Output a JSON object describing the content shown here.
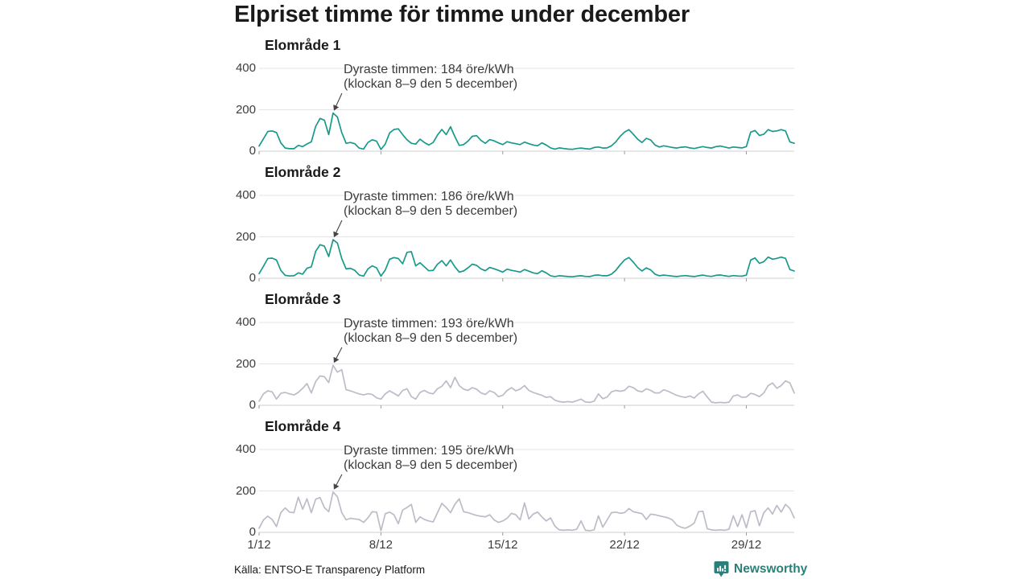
{
  "title": "Elpriset timme för timme under december",
  "source": "Källa: ENTSO-E Transparency Platform",
  "brand": {
    "name": "Newsworthy",
    "color": "#2a8079",
    "icon": "newsworthy-speech-bubble-chart-icon"
  },
  "colors": {
    "teal_line": "#189a8b",
    "gray_line": "#bcbcc8",
    "grid": "#e4e4e4",
    "baseline": "#cfcfcf",
    "tick": "#9a9a9a",
    "arrow": "#444444"
  },
  "axis": {
    "y_ticks": [
      "400",
      "200",
      "0"
    ],
    "x_ticks": [
      "1/12",
      "8/12",
      "15/12",
      "22/12",
      "29/12"
    ],
    "ylim": [
      0,
      400
    ],
    "grid": "horizontal-only"
  },
  "chart_data": [
    {
      "type": "line",
      "title": "Elområde 1",
      "ylabel": "öre/kWh",
      "color": "#189a8b",
      "ylim": [
        0,
        400
      ],
      "annotation_line1": "Dyraste timmen: 184 öre/kWh",
      "annotation_line2": "(klockan 8–9 den 5 december)",
      "peak_value": 184,
      "peak_day": 5,
      "sample_interval_hours": 6,
      "x_start": "1/12",
      "x_end": "31/12",
      "values": [
        25,
        60,
        95,
        98,
        90,
        40,
        15,
        12,
        12,
        28,
        22,
        35,
        45,
        120,
        158,
        150,
        80,
        184,
        165,
        90,
        38,
        42,
        36,
        15,
        10,
        42,
        55,
        48,
        8,
        35,
        88,
        105,
        108,
        80,
        55,
        38,
        34,
        58,
        42,
        30,
        42,
        78,
        105,
        80,
        118,
        70,
        28,
        32,
        48,
        72,
        75,
        52,
        38,
        56,
        50,
        40,
        32,
        46,
        40,
        36,
        32,
        44,
        36,
        30,
        26,
        40,
        30,
        16,
        10,
        16,
        13,
        10,
        9,
        13,
        15,
        12,
        10,
        18,
        20,
        15,
        16,
        26,
        45,
        72,
        92,
        104,
        82,
        58,
        42,
        62,
        54,
        30,
        20,
        26,
        22,
        18,
        15,
        19,
        21,
        16,
        13,
        18,
        22,
        18,
        15,
        22,
        25,
        20,
        15,
        20,
        18,
        16,
        22,
        92,
        100,
        76,
        82,
        104,
        95,
        98,
        104,
        98,
        45,
        38
      ]
    },
    {
      "type": "line",
      "title": "Elområde 2",
      "ylabel": "öre/kWh",
      "color": "#189a8b",
      "ylim": [
        0,
        400
      ],
      "annotation_line1": "Dyraste timmen: 186 öre/kWh",
      "annotation_line2": "(klockan 8–9 den 5 december)",
      "peak_value": 186,
      "peak_day": 5,
      "sample_interval_hours": 6,
      "x_start": "1/12",
      "x_end": "31/12",
      "values": [
        22,
        58,
        95,
        97,
        88,
        38,
        14,
        11,
        12,
        26,
        20,
        48,
        55,
        130,
        162,
        155,
        105,
        186,
        170,
        95,
        45,
        48,
        38,
        16,
        10,
        45,
        60,
        50,
        10,
        40,
        92,
        100,
        95,
        70,
        125,
        128,
        60,
        75,
        55,
        36,
        38,
        68,
        85,
        60,
        88,
        55,
        30,
        35,
        50,
        68,
        62,
        45,
        36,
        52,
        46,
        38,
        30,
        44,
        38,
        34,
        30,
        42,
        34,
        26,
        22,
        36,
        26,
        12,
        8,
        12,
        10,
        8,
        7,
        10,
        12,
        9,
        8,
        14,
        16,
        12,
        12,
        20,
        38,
        65,
        88,
        100,
        78,
        52,
        35,
        50,
        40,
        20,
        12,
        15,
        13,
        10,
        8,
        11,
        13,
        10,
        8,
        12,
        15,
        11,
        9,
        14,
        16,
        12,
        9,
        13,
        11,
        10,
        15,
        88,
        98,
        72,
        80,
        102,
        92,
        96,
        102,
        96,
        42,
        35
      ]
    },
    {
      "type": "line",
      "title": "Elområde 3",
      "ylabel": "öre/kWh",
      "color": "#bcbcc8",
      "ylim": [
        0,
        400
      ],
      "annotation_line1": "Dyraste timmen: 193 öre/kWh",
      "annotation_line2": "(klockan 8–9 den 5 december)",
      "peak_value": 193,
      "peak_day": 5,
      "sample_interval_hours": 6,
      "x_start": "1/12",
      "x_end": "31/12",
      "values": [
        20,
        55,
        70,
        65,
        30,
        58,
        62,
        55,
        50,
        62,
        82,
        105,
        60,
        115,
        142,
        138,
        110,
        193,
        160,
        172,
        75,
        70,
        62,
        55,
        50,
        56,
        52,
        36,
        30,
        55,
        70,
        58,
        45,
        72,
        80,
        42,
        30,
        62,
        72,
        60,
        55,
        80,
        92,
        118,
        85,
        135,
        95,
        78,
        72,
        85,
        78,
        60,
        52,
        70,
        62,
        42,
        48,
        72,
        85,
        70,
        78,
        95,
        72,
        62,
        55,
        48,
        38,
        42,
        25,
        18,
        15,
        18,
        15,
        22,
        30,
        16,
        14,
        20,
        55,
        32,
        40,
        65,
        72,
        68,
        72,
        92,
        85,
        70,
        65,
        80,
        72,
        60,
        60,
        75,
        68,
        58,
        48,
        42,
        38,
        45,
        35,
        55,
        68,
        40,
        15,
        12,
        14,
        12,
        15,
        45,
        50,
        38,
        40,
        58,
        52,
        42,
        60,
        95,
        108,
        82,
        95,
        118,
        108,
        60
      ]
    },
    {
      "type": "line",
      "title": "Elområde 4",
      "ylabel": "öre/kWh",
      "color": "#bcbcc8",
      "ylim": [
        0,
        400
      ],
      "annotation_line1": "Dyraste timmen: 195 öre/kWh",
      "annotation_line2": "(klockan 8–9 den 5 december)",
      "peak_value": 195,
      "peak_day": 5,
      "sample_interval_hours": 6,
      "x_start": "1/12",
      "x_end": "31/12",
      "values": [
        20,
        60,
        78,
        62,
        28,
        95,
        118,
        98,
        95,
        170,
        112,
        162,
        95,
        160,
        168,
        120,
        100,
        195,
        172,
        95,
        60,
        68,
        65,
        62,
        48,
        70,
        100,
        98,
        8,
        90,
        98,
        85,
        42,
        108,
        120,
        135,
        48,
        75,
        62,
        55,
        50,
        95,
        140,
        120,
        95,
        135,
        162,
        100,
        95,
        88,
        82,
        78,
        75,
        85,
        60,
        48,
        55,
        68,
        92,
        85,
        60,
        142,
        65,
        88,
        98,
        75,
        55,
        70,
        30,
        12,
        10,
        12,
        10,
        15,
        55,
        10,
        8,
        12,
        80,
        25,
        60,
        95,
        98,
        92,
        95,
        115,
        100,
        95,
        90,
        62,
        88,
        85,
        80,
        75,
        70,
        60,
        35,
        25,
        20,
        30,
        45,
        100,
        102,
        18,
        12,
        10,
        12,
        10,
        15,
        80,
        28,
        85,
        22,
        100,
        105,
        32,
        95,
        118,
        88,
        130,
        98,
        135,
        115,
        70
      ]
    }
  ]
}
